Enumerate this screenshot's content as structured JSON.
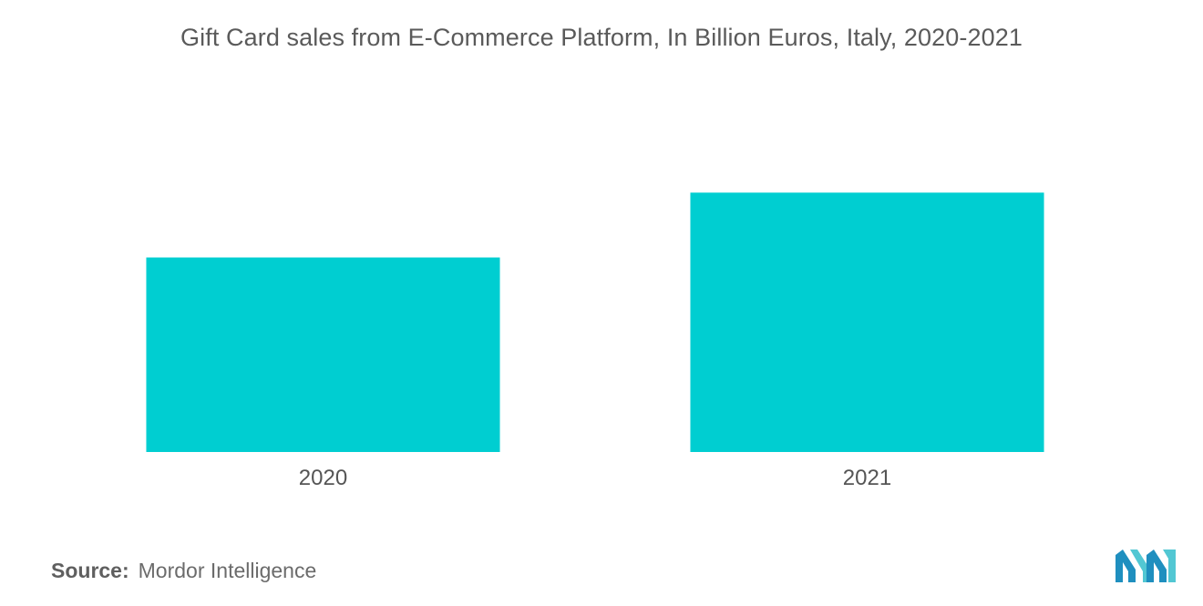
{
  "chart_data": {
    "type": "bar",
    "title": "Gift Card sales from E-Commerce Platform, In Billion Euros, Italy, 2020-2021",
    "categories": [
      "2020",
      "2021"
    ],
    "values": [
      0.75,
      1.0
    ],
    "xlabel": "",
    "ylabel": "",
    "ylim": [
      0,
      1.3
    ],
    "grid": false,
    "legend": "none",
    "bar_color": "#00CED1"
  },
  "source": {
    "label": "Source:",
    "text": "Mordor Intelligence"
  },
  "logo": {
    "icon": "mordor-intelligence-logo",
    "colors": [
      "#1f8fbf",
      "#52c7d3"
    ]
  }
}
